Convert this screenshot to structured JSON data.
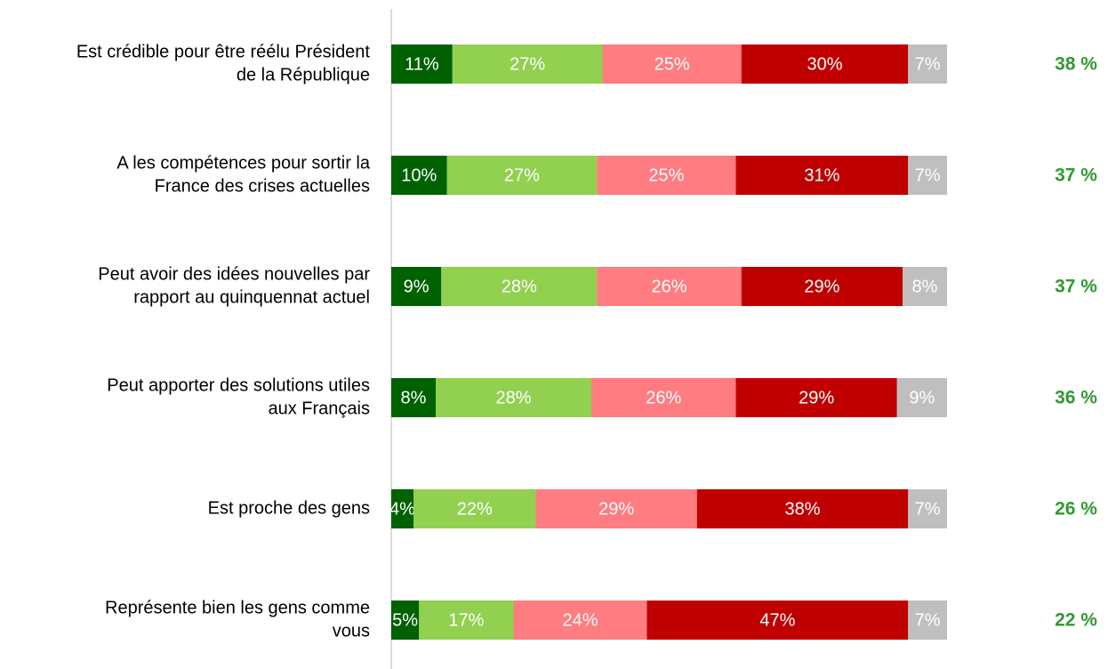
{
  "chart_data": {
    "type": "stacked-bar-horizontal",
    "categories": [
      [
        "Est crédible pour être réélu Président",
        "de la République"
      ],
      [
        "A les compétences pour sortir la",
        "France des crises actuelles"
      ],
      [
        "Peut avoir des idées nouvelles par",
        "rapport au quinquennat actuel"
      ],
      [
        "Peut apporter des solutions utiles",
        "aux Français"
      ],
      [
        "Est proche des gens"
      ],
      [
        "Représente bien les gens comme",
        "vous"
      ]
    ],
    "xlim": [
      0,
      100
    ],
    "series": [
      {
        "color": "#006100",
        "values": [
          11,
          10,
          9,
          8,
          4,
          5
        ],
        "value_labels": [
          "11%",
          "10%",
          "9%",
          "8%",
          "4%",
          "5%"
        ]
      },
      {
        "color": "#92d050",
        "values": [
          27,
          27,
          28,
          28,
          22,
          17
        ],
        "value_labels": [
          "27%",
          "27%",
          "28%",
          "28%",
          "22%",
          "17%"
        ]
      },
      {
        "color": "#ff7c80",
        "values": [
          25,
          25,
          26,
          26,
          29,
          24
        ],
        "value_labels": [
          "25%",
          "25%",
          "26%",
          "26%",
          "29%",
          "24%"
        ]
      },
      {
        "color": "#c00000",
        "values": [
          30,
          31,
          29,
          29,
          38,
          47
        ],
        "value_labels": [
          "30%",
          "31%",
          "29%",
          "29%",
          "38%",
          "47%"
        ]
      },
      {
        "color": "#bfbfbf",
        "values": [
          7,
          7,
          8,
          9,
          7,
          7
        ],
        "value_labels": [
          "7%",
          "7%",
          "8%",
          "9%",
          "7%",
          "7%"
        ]
      }
    ],
    "totals": {
      "color": "#339933",
      "values": [
        38,
        37,
        37,
        36,
        26,
        22
      ],
      "value_labels": [
        "38 %",
        "37 %",
        "37 %",
        "36 %",
        "26 %",
        "22 %"
      ]
    }
  }
}
